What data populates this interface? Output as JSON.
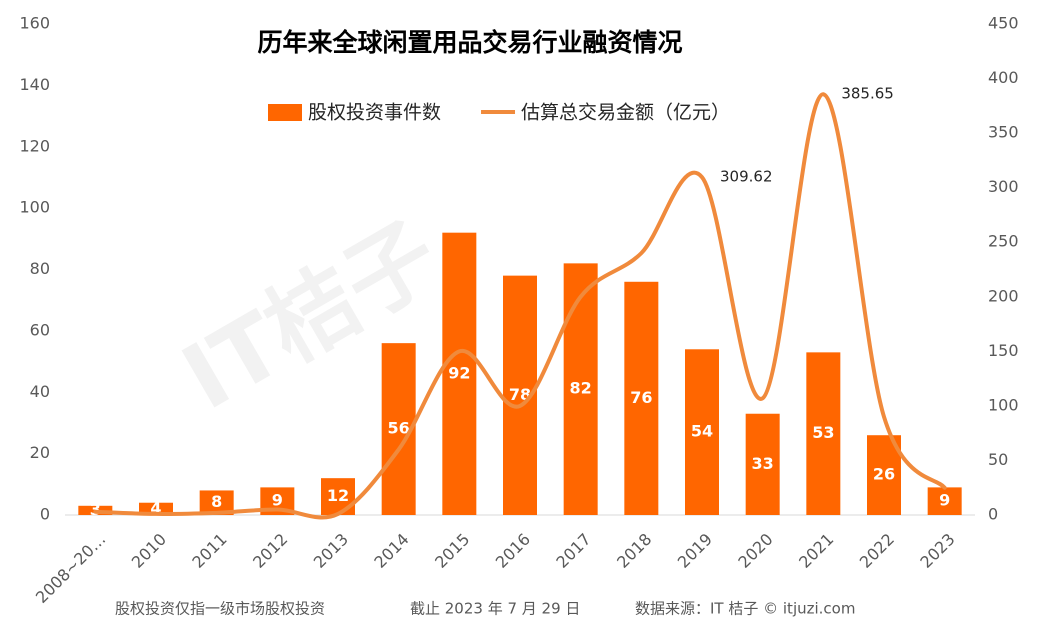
{
  "chart_data": {
    "type": "bar_line",
    "title": "历年来全球闲置用品交易行业融资情况",
    "watermark": "IT桔子",
    "footer": [
      "股权投资仅指一级市场股权投资",
      "截止 2023 年 7 月 29 日",
      "数据来源：IT 桔子 © itjuzi.com"
    ],
    "categories": [
      "2008~20…",
      "2010",
      "2011",
      "2012",
      "2013",
      "2014",
      "2015",
      "2016",
      "2017",
      "2018",
      "2019",
      "2020",
      "2021",
      "2022",
      "2023"
    ],
    "series": [
      {
        "name": "股权投资事件数",
        "type": "bar",
        "color": "#ff6600",
        "values": [
          3,
          4,
          8,
          9,
          12,
          56,
          92,
          78,
          82,
          76,
          54,
          33,
          53,
          26,
          9
        ]
      },
      {
        "name": "估算总交易金额（亿元）",
        "type": "line",
        "axis": "y2",
        "color": "#f08a3c",
        "smooth": true,
        "values": [
          3,
          1,
          2,
          5,
          1,
          60,
          150,
          100,
          200,
          240,
          309.62,
          107,
          385.65,
          90,
          25
        ],
        "value_labels": [
          null,
          null,
          null,
          null,
          null,
          null,
          null,
          null,
          null,
          null,
          "309.62",
          null,
          "385.65",
          null,
          null
        ]
      }
    ],
    "ylim": [
      0,
      160
    ],
    "yticks": [
      0,
      20,
      40,
      60,
      80,
      100,
      120,
      140,
      160
    ],
    "y2lim": [
      0,
      450
    ],
    "y2ticks": [
      0,
      50,
      100,
      150,
      200,
      250,
      300,
      350,
      400,
      450
    ],
    "grid": false,
    "legend": "top"
  }
}
